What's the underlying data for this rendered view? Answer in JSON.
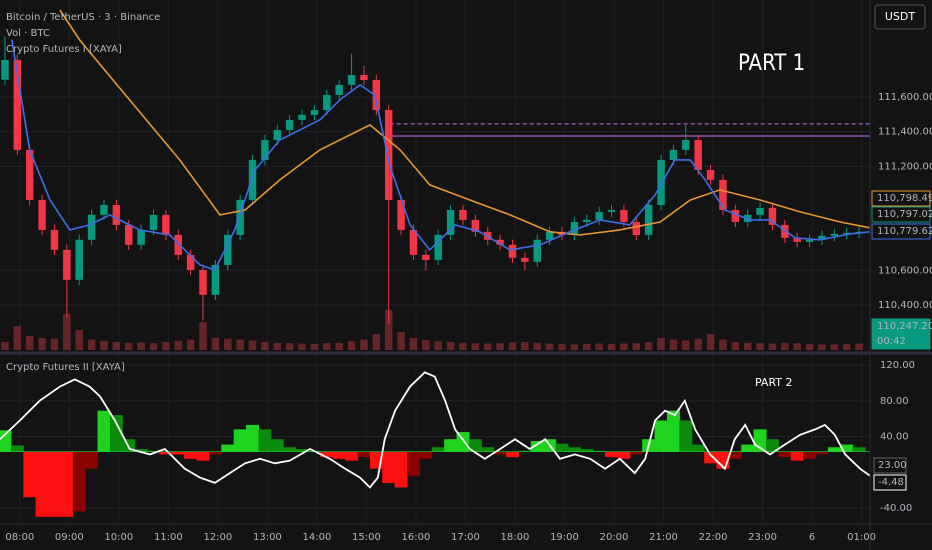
{
  "ui": {
    "currency": "USDT"
  },
  "chart_data": [
    {
      "type": "candlestick",
      "title": "Bitcoin / TetherUS · 3 · Binance",
      "subtitle": "Vol · BTC",
      "indicator": "Crypto Futures I [XAYA]",
      "annotation": "PART 1",
      "xlim": [
        -0.4,
        17.17
      ],
      "xticks": [
        {
          "value": 0,
          "label": "08:00"
        },
        {
          "value": 1,
          "label": "09:00"
        },
        {
          "value": 2,
          "label": "10:00"
        },
        {
          "value": 3,
          "label": "11:00"
        },
        {
          "value": 4,
          "label": "12:00"
        },
        {
          "value": 5,
          "label": "13:00"
        },
        {
          "value": 6,
          "label": "14:00"
        },
        {
          "value": 7,
          "label": "15:00"
        },
        {
          "value": 8,
          "label": "16:00"
        },
        {
          "value": 9,
          "label": "17:00"
        },
        {
          "value": 10,
          "label": "18:00"
        },
        {
          "value": 11,
          "label": "19:00"
        },
        {
          "value": 12,
          "label": "20:00"
        },
        {
          "value": 13,
          "label": "21:00"
        },
        {
          "value": 14,
          "label": "22:00"
        },
        {
          "value": 15,
          "label": "23:00"
        },
        {
          "value": 16,
          "label": "6"
        },
        {
          "value": 17,
          "label": "01:00"
        }
      ],
      "ylim": [
        110140,
        112160
      ],
      "yticks": [
        {
          "value": 110400,
          "label": "110,400.00"
        },
        {
          "value": 110600,
          "label": "110,600.00"
        },
        {
          "value": 111200,
          "label": "111,200.00"
        },
        {
          "value": 111400,
          "label": "111,400.00"
        },
        {
          "value": 111600,
          "label": "111,600.00"
        }
      ],
      "grid": true,
      "up_color": "#089981",
      "down_color": "#f23645",
      "x": [
        -0.3,
        -0.05,
        0.2,
        0.45,
        0.7,
        0.95,
        1.2,
        1.45,
        1.7,
        1.95,
        2.2,
        2.45,
        2.7,
        2.95,
        3.2,
        3.45,
        3.7,
        3.95,
        4.2,
        4.45,
        4.7,
        4.95,
        5.2,
        5.45,
        5.7,
        5.95,
        6.2,
        6.45,
        6.7,
        6.95,
        7.2,
        7.45,
        7.7,
        7.95,
        8.2,
        8.45,
        8.7,
        8.95,
        9.2,
        9.45,
        9.7,
        9.95,
        10.2,
        10.45,
        10.7,
        10.95,
        11.2,
        11.45,
        11.7,
        11.95,
        12.2,
        12.45,
        12.7,
        12.95,
        13.2,
        13.45,
        13.7,
        13.95,
        14.2,
        14.45,
        14.7,
        14.95,
        15.2,
        15.45,
        15.7,
        15.95,
        16.2,
        16.45,
        16.7,
        16.95
      ],
      "candles": [
        [
          111700,
          111950,
          111670,
          111814
        ],
        [
          111814,
          111844,
          111265,
          111295
        ],
        [
          111295,
          111325,
          110976,
          111006
        ],
        [
          111006,
          111036,
          110803,
          110833
        ],
        [
          110833,
          110863,
          110688,
          110718
        ],
        [
          110718,
          110748,
          110330,
          110545
        ],
        [
          110545,
          110806,
          110515,
          110776
        ],
        [
          110776,
          110950,
          110746,
          110920
        ],
        [
          110920,
          111007,
          110890,
          110977
        ],
        [
          110977,
          111007,
          110832,
          110862
        ],
        [
          110862,
          110892,
          110717,
          110747
        ],
        [
          110747,
          110863,
          110717,
          110833
        ],
        [
          110833,
          110950,
          110803,
          110920
        ],
        [
          110920,
          110950,
          110774,
          110804
        ],
        [
          110804,
          110834,
          110659,
          110689
        ],
        [
          110689,
          110719,
          110572,
          110602
        ],
        [
          110602,
          110632,
          110310,
          110458
        ],
        [
          110458,
          110661,
          110428,
          110631
        ],
        [
          110631,
          110834,
          110601,
          110804
        ],
        [
          110804,
          111036,
          110774,
          111006
        ],
        [
          111006,
          111267,
          110976,
          111237
        ],
        [
          111237,
          111382,
          111207,
          111352
        ],
        [
          111352,
          111440,
          111322,
          111410
        ],
        [
          111410,
          111498,
          111380,
          111468
        ],
        [
          111468,
          111527,
          111438,
          111497
        ],
        [
          111497,
          111555,
          111467,
          111525
        ],
        [
          111525,
          111642,
          111495,
          111612
        ],
        [
          111612,
          111700,
          111582,
          111670
        ],
        [
          111670,
          111850,
          111640,
          111727
        ],
        [
          111727,
          111780,
          111668,
          111698
        ],
        [
          111698,
          111728,
          111495,
          111525
        ],
        [
          111525,
          111555,
          110290,
          111006
        ],
        [
          111006,
          111036,
          110803,
          110833
        ],
        [
          110833,
          110863,
          110659,
          110689
        ],
        [
          110689,
          110719,
          110600,
          110660
        ],
        [
          110660,
          110834,
          110630,
          110804
        ],
        [
          110804,
          110978,
          110774,
          110948
        ],
        [
          110948,
          110978,
          110861,
          110891
        ],
        [
          110891,
          110921,
          110792,
          110822
        ],
        [
          110822,
          110852,
          110746,
          110776
        ],
        [
          110776,
          110806,
          110717,
          110747
        ],
        [
          110747,
          110777,
          110642,
          110672
        ],
        [
          110672,
          110702,
          110600,
          110649
        ],
        [
          110649,
          110806,
          110619,
          110776
        ],
        [
          110776,
          110852,
          110746,
          110822
        ],
        [
          110822,
          110852,
          110774,
          110804
        ],
        [
          110804,
          110909,
          110774,
          110879
        ],
        [
          110879,
          110921,
          110849,
          110891
        ],
        [
          110891,
          110967,
          110861,
          110937
        ],
        [
          110937,
          110978,
          110907,
          110948
        ],
        [
          110948,
          110978,
          110849,
          110879
        ],
        [
          110879,
          110909,
          110774,
          110804
        ],
        [
          110804,
          111007,
          110774,
          110977
        ],
        [
          110977,
          111267,
          110947,
          111237
        ],
        [
          111237,
          111325,
          111207,
          111295
        ],
        [
          111295,
          111440,
          111265,
          111352
        ],
        [
          111352,
          111382,
          111149,
          111179
        ],
        [
          111179,
          111209,
          111092,
          111122
        ],
        [
          111122,
          111152,
          110918,
          110948
        ],
        [
          110948,
          110978,
          110849,
          110879
        ],
        [
          110879,
          110950,
          110849,
          110920
        ],
        [
          110920,
          110990,
          110890,
          110960
        ],
        [
          110960,
          110990,
          110832,
          110862
        ],
        [
          110862,
          110892,
          110757,
          110787
        ],
        [
          110787,
          110817,
          110734,
          110764
        ],
        [
          110764,
          110806,
          110734,
          110776
        ],
        [
          110776,
          110829,
          110746,
          110799
        ],
        [
          110799,
          110840,
          110769,
          110810
        ],
        [
          110810,
          110846,
          110780,
          110816
        ],
        [
          110816,
          110852,
          110786,
          110822
        ]
      ],
      "volume": [
        200,
        600,
        350,
        300,
        280,
        900,
        500,
        260,
        220,
        200,
        180,
        190,
        170,
        200,
        230,
        260,
        700,
        300,
        280,
        260,
        240,
        200,
        180,
        170,
        160,
        150,
        170,
        180,
        220,
        260,
        400,
        1000,
        450,
        300,
        250,
        220,
        200,
        180,
        170,
        160,
        170,
        190,
        200,
        180,
        160,
        150,
        140,
        150,
        160,
        150,
        160,
        170,
        200,
        300,
        260,
        240,
        280,
        400,
        260,
        200,
        180,
        170,
        160,
        180,
        170,
        150,
        140,
        140,
        150,
        160
      ],
      "volume_color": "#7a2a2e",
      "lines": [
        {
          "color": "#e8962e",
          "x": [
            0.81,
            1.21,
            2.22,
            3.23,
            4.04,
            4.55,
            5.25,
            6.06,
            7.07,
            7.68,
            8.28,
            9.09,
            9.9,
            10.71,
            11.31,
            12.12,
            12.93,
            13.54,
            14.14,
            14.95,
            15.76,
            16.57,
            17.17
          ],
          "values": [
            112102,
            111929,
            111583,
            111237,
            110920,
            110948,
            111122,
            111295,
            111439,
            111295,
            111093,
            111006,
            110920,
            110822,
            110804,
            110833,
            110879,
            111006,
            111064,
            111006,
            110937,
            110879,
            110845
          ]
        },
        {
          "color": "#3d6ee8",
          "x": [
            -0.16,
            0.2,
            0.61,
            1.01,
            1.41,
            1.82,
            2.42,
            3.03,
            3.64,
            3.94,
            4.34,
            4.75,
            5.25,
            6.06,
            6.46,
            6.87,
            7.17,
            7.47,
            7.88,
            8.28,
            8.79,
            9.29,
            9.9,
            10.51,
            11.11,
            11.72,
            12.32,
            12.83,
            13.23,
            13.54,
            13.84,
            14.24,
            14.75,
            15.15,
            15.66,
            16.16,
            16.77,
            17.17
          ],
          "values": [
            111929,
            111295,
            111006,
            110833,
            110862,
            110920,
            110833,
            110804,
            110631,
            110602,
            110833,
            111179,
            111352,
            111468,
            111583,
            111670,
            111612,
            111208,
            110862,
            110718,
            110862,
            110822,
            110718,
            110747,
            110822,
            110891,
            110862,
            111035,
            111237,
            111237,
            111122,
            110948,
            110891,
            110891,
            110787,
            110776,
            110810,
            110822
          ]
        }
      ],
      "levels": [
        {
          "value": 111445,
          "from": 7.47,
          "style": "dashed",
          "color": "#d36bf0"
        },
        {
          "value": 111375,
          "from": 7.47,
          "style": "solid",
          "color": "#d36bf0"
        }
      ],
      "badges": [
        {
          "label": "110,798.49",
          "color": "#e8962e"
        },
        {
          "label": "110,797.02",
          "color": "#089981"
        },
        {
          "label": "110,779.62",
          "color": "#3d6ee8"
        },
        {
          "label": "110,247.20",
          "color": "#089981"
        },
        {
          "label": "00:42",
          "color": "#089981"
        }
      ]
    },
    {
      "type": "oscillator",
      "title": "Crypto Futures II [XAYA]",
      "annotation": "PART 2",
      "xlim": [
        -0.4,
        17.17
      ],
      "ylim": [
        -58,
        128
      ],
      "yticks": [
        {
          "value": 120,
          "label": "120.00"
        },
        {
          "value": 80,
          "label": "80.00"
        },
        {
          "value": 40,
          "label": "40.00"
        },
        {
          "value": -40,
          "label": "-40.00"
        }
      ],
      "badges": [
        {
          "value": 23,
          "label": "23.00"
        },
        {
          "value": -4.48,
          "label": "-4.48"
        }
      ],
      "colors": {
        "up_rising": "#1fd41f",
        "up_falling": "#0b8a0b",
        "down_rising": "#ff1010",
        "down_falling": "#8b0000"
      },
      "histogram": {
        "x": [
          -0.3,
          -0.05,
          0.2,
          0.45,
          0.7,
          0.95,
          1.2,
          1.45,
          1.7,
          1.95,
          2.2,
          2.45,
          2.7,
          2.95,
          3.2,
          3.45,
          3.7,
          3.95,
          4.2,
          4.45,
          4.7,
          4.95,
          5.2,
          5.45,
          5.7,
          5.95,
          6.2,
          6.45,
          6.7,
          6.95,
          7.2,
          7.45,
          7.7,
          7.95,
          8.2,
          8.45,
          8.7,
          8.95,
          9.2,
          9.45,
          9.7,
          9.95,
          10.2,
          10.45,
          10.7,
          10.95,
          11.2,
          11.45,
          11.7,
          11.95,
          12.2,
          12.45,
          12.7,
          12.95,
          13.2,
          13.45,
          13.7,
          13.95,
          14.2,
          14.45,
          14.7,
          14.95,
          15.2,
          15.45,
          15.7,
          15.95,
          16.2,
          16.45,
          16.7,
          16.95
        ],
        "values": [
          47,
          30,
          -28,
          -50,
          -50,
          -50,
          -44,
          4,
          69,
          64,
          37,
          26,
          24,
          20,
          20,
          15,
          13,
          20,
          31,
          48,
          53,
          48,
          37,
          28,
          26,
          24,
          17,
          15,
          13,
          17,
          4,
          -12,
          -17,
          -4,
          15,
          28,
          37,
          45,
          37,
          28,
          20,
          17,
          24,
          35,
          37,
          32,
          28,
          26,
          24,
          17,
          15,
          20,
          37,
          58,
          69,
          58,
          31,
          10,
          4,
          15,
          31,
          48,
          37,
          17,
          13,
          15,
          20,
          28,
          31,
          28
        ]
      },
      "line": {
        "color": "#ffffff",
        "x": [
          -0.4,
          0,
          0.4,
          0.81,
          1.11,
          1.41,
          1.62,
          1.92,
          2.22,
          2.63,
          2.93,
          3.33,
          3.64,
          3.94,
          4.24,
          4.55,
          4.85,
          5.15,
          5.45,
          5.86,
          6.26,
          6.57,
          6.87,
          7.07,
          7.23,
          7.37,
          7.58,
          7.88,
          8.18,
          8.38,
          8.59,
          8.79,
          9.09,
          9.39,
          9.7,
          10.0,
          10.3,
          10.61,
          10.91,
          11.21,
          11.52,
          11.82,
          12.12,
          12.42,
          12.63,
          12.83,
          13.03,
          13.23,
          13.43,
          13.64,
          13.94,
          14.24,
          14.44,
          14.65,
          14.85,
          15.15,
          15.45,
          15.76,
          16.06,
          16.26,
          16.46,
          16.67,
          16.97,
          17.17
        ],
        "values": [
          37,
          58,
          80,
          96,
          104,
          96,
          85,
          58,
          26,
          20,
          26,
          4,
          -6,
          -12,
          -1,
          10,
          15,
          10,
          13,
          26,
          15,
          4,
          -6,
          -17,
          -6,
          37,
          69,
          96,
          112,
          107,
          80,
          48,
          26,
          15,
          26,
          37,
          26,
          37,
          15,
          20,
          15,
          4,
          15,
          -1,
          15,
          58,
          69,
          64,
          80,
          48,
          20,
          4,
          37,
          53,
          31,
          20,
          31,
          42,
          48,
          53,
          42,
          20,
          4,
          -4
        ]
      }
    }
  ]
}
